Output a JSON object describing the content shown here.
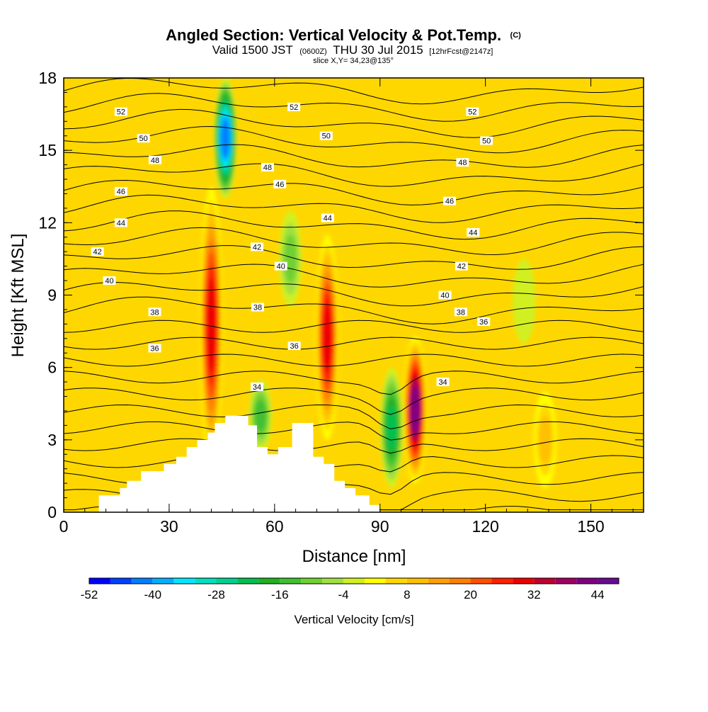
{
  "chart_data": {
    "type": "heatmap",
    "title": {
      "main": "Angled Section: Vertical Velocity & Pot.Temp.",
      "main_suffix": "(C)",
      "line2_a": "Valid 1500 JST",
      "line2_b": "(0600Z)",
      "line2_c": "THU 30 Jul 2015",
      "line2_d": "[12hrFcst@2147z]",
      "line3": "slice X,Y= 34,23@135°"
    },
    "xlabel": "Distance [nm]",
    "ylabel": "Height [Kft MSL]",
    "xlim": [
      0,
      165
    ],
    "ylim": [
      0,
      18
    ],
    "x_ticks": [
      "0",
      "30",
      "60",
      "90",
      "120",
      "150"
    ],
    "y_ticks": [
      "0",
      "3",
      "6",
      "9",
      "12",
      "15",
      "18"
    ],
    "colorbar": {
      "title": "Vertical Velocity [cm/s]",
      "levels": [
        -52,
        -48,
        -44,
        -40,
        -36,
        -32,
        -28,
        -24,
        -20,
        -16,
        -12,
        -8,
        -4,
        0,
        4,
        8,
        12,
        16,
        20,
        24,
        28,
        32,
        36,
        40,
        44,
        48
      ],
      "tick_labels": [
        "-52",
        "-40",
        "-28",
        "-16",
        "-4",
        "8",
        "20",
        "32",
        "44"
      ],
      "colors": [
        "#0000ff",
        "#0040ff",
        "#0080ff",
        "#00b0ff",
        "#00e8ff",
        "#00e0c0",
        "#00d090",
        "#00c050",
        "#20b020",
        "#40c030",
        "#70d030",
        "#a0e040",
        "#d0f020",
        "#ffff00",
        "#ffd800",
        "#ffc000",
        "#ffa000",
        "#ff8000",
        "#ff5000",
        "#ff2000",
        "#ee0000",
        "#c00030",
        "#a00060",
        "#800080",
        "#6a0a90"
      ]
    },
    "theta_labels": [
      {
        "value": "52",
        "x": 16.3,
        "y": 16.6
      },
      {
        "value": "52",
        "x": 65.5,
        "y": 16.8
      },
      {
        "value": "52",
        "x": 116.3,
        "y": 16.6
      },
      {
        "value": "50",
        "x": 22.7,
        "y": 15.5
      },
      {
        "value": "50",
        "x": 74.7,
        "y": 15.6
      },
      {
        "value": "50",
        "x": 120.3,
        "y": 15.4
      },
      {
        "value": "48",
        "x": 26.0,
        "y": 14.6
      },
      {
        "value": "48",
        "x": 58.0,
        "y": 14.3
      },
      {
        "value": "48",
        "x": 113.5,
        "y": 14.5
      },
      {
        "value": "46",
        "x": 16.3,
        "y": 13.3
      },
      {
        "value": "46",
        "x": 61.5,
        "y": 13.6
      },
      {
        "value": "46",
        "x": 109.8,
        "y": 12.9
      },
      {
        "value": "44",
        "x": 16.3,
        "y": 12.0
      },
      {
        "value": "44",
        "x": 75.1,
        "y": 12.2
      },
      {
        "value": "44",
        "x": 116.5,
        "y": 11.6
      },
      {
        "value": "42",
        "x": 9.6,
        "y": 10.8
      },
      {
        "value": "42",
        "x": 55.0,
        "y": 11.0
      },
      {
        "value": "42",
        "x": 113.2,
        "y": 10.2
      },
      {
        "value": "40",
        "x": 13.0,
        "y": 9.6
      },
      {
        "value": "40",
        "x": 61.8,
        "y": 10.2
      },
      {
        "value": "40",
        "x": 108.5,
        "y": 9.0
      },
      {
        "value": "38",
        "x": 25.9,
        "y": 8.3
      },
      {
        "value": "38",
        "x": 55.2,
        "y": 8.5
      },
      {
        "value": "38",
        "x": 113.0,
        "y": 8.3
      },
      {
        "value": "36",
        "x": 25.9,
        "y": 6.8
      },
      {
        "value": "36",
        "x": 65.6,
        "y": 6.9
      },
      {
        "value": "36",
        "x": 119.5,
        "y": 7.9
      },
      {
        "value": "34",
        "x": 55.0,
        "y": 5.2
      },
      {
        "value": "34",
        "x": 107.9,
        "y": 5.4
      }
    ],
    "updrafts": [
      {
        "x": 42.0,
        "y0": 2.0,
        "y1": 13.5,
        "peak": 30
      },
      {
        "x": 46.0,
        "y0": 13.0,
        "y1": 18.0,
        "peak": -44
      },
      {
        "x": 75.0,
        "y0": 3.0,
        "y1": 11.5,
        "peak": 30
      },
      {
        "x": 100.0,
        "y0": 1.2,
        "y1": 7.3,
        "peak": 44
      },
      {
        "x": 93.3,
        "y0": 1.0,
        "y1": 6.0,
        "peak": -24
      },
      {
        "x": 64.5,
        "y0": 8.5,
        "y1": 12.5,
        "peak": -12
      },
      {
        "x": 56.0,
        "y0": 2.5,
        "y1": 5.5,
        "peak": -16
      },
      {
        "x": 137.0,
        "y0": 1.0,
        "y1": 5.0,
        "peak": 12
      },
      {
        "x": 131.0,
        "y0": 7.0,
        "y1": 10.5,
        "peak": -4
      }
    ],
    "terrain": [
      [
        10,
        0.0
      ],
      [
        10,
        0.7
      ],
      [
        16,
        0.7
      ],
      [
        16,
        1.0
      ],
      [
        18,
        1.0
      ],
      [
        18,
        1.3
      ],
      [
        22,
        1.3
      ],
      [
        22,
        1.7
      ],
      [
        28.5,
        1.7
      ],
      [
        28.5,
        2.0
      ],
      [
        32,
        2.0
      ],
      [
        32,
        2.3
      ],
      [
        35,
        2.3
      ],
      [
        35,
        2.7
      ],
      [
        38,
        2.7
      ],
      [
        38,
        3.0
      ],
      [
        41,
        3.0
      ],
      [
        41,
        3.3
      ],
      [
        43,
        3.3
      ],
      [
        43,
        3.7
      ],
      [
        46,
        3.7
      ],
      [
        46,
        4.0
      ],
      [
        52.5,
        4.0
      ],
      [
        52.5,
        3.6
      ],
      [
        55,
        3.6
      ],
      [
        55,
        2.7
      ],
      [
        58,
        2.7
      ],
      [
        58,
        2.4
      ],
      [
        61,
        2.4
      ],
      [
        61,
        2.7
      ],
      [
        65,
        2.7
      ],
      [
        65,
        3.7
      ],
      [
        71,
        3.7
      ],
      [
        71,
        2.3
      ],
      [
        74,
        2.3
      ],
      [
        74,
        2.0
      ],
      [
        77,
        2.0
      ],
      [
        77,
        1.3
      ],
      [
        80,
        1.3
      ],
      [
        80,
        1.0
      ],
      [
        83,
        1.0
      ],
      [
        83,
        0.7
      ],
      [
        87,
        0.7
      ],
      [
        87,
        0.3
      ],
      [
        90,
        0.3
      ],
      [
        90,
        0.0
      ]
    ]
  }
}
